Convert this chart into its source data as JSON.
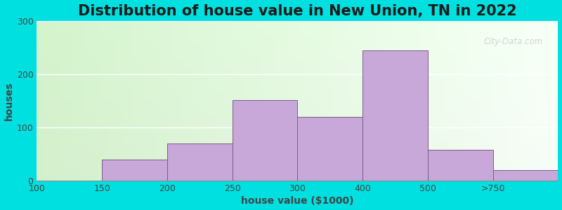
{
  "title": "Distribution of house value in New Union, TN in 2022",
  "xlabel": "house value ($1000)",
  "ylabel": "houses",
  "bar_labels": [
    "100",
    "150",
    "200",
    "250",
    "300",
    "400",
    "500",
    ">750"
  ],
  "bar_heights": [
    0,
    40,
    70,
    152,
    120,
    245,
    58,
    20
  ],
  "bar_lefts": [
    0,
    1,
    2,
    3,
    4,
    5,
    6,
    7
  ],
  "bar_color": "#c8a8d8",
  "bar_edgecolor": "#7a5a8a",
  "ylim": [
    0,
    300
  ],
  "yticks": [
    0,
    100,
    200,
    300
  ],
  "outer_bg": "#00e0e0",
  "title_fontsize": 15,
  "axis_fontsize": 10,
  "tick_fontsize": 9,
  "watermark": "City-Data.com"
}
